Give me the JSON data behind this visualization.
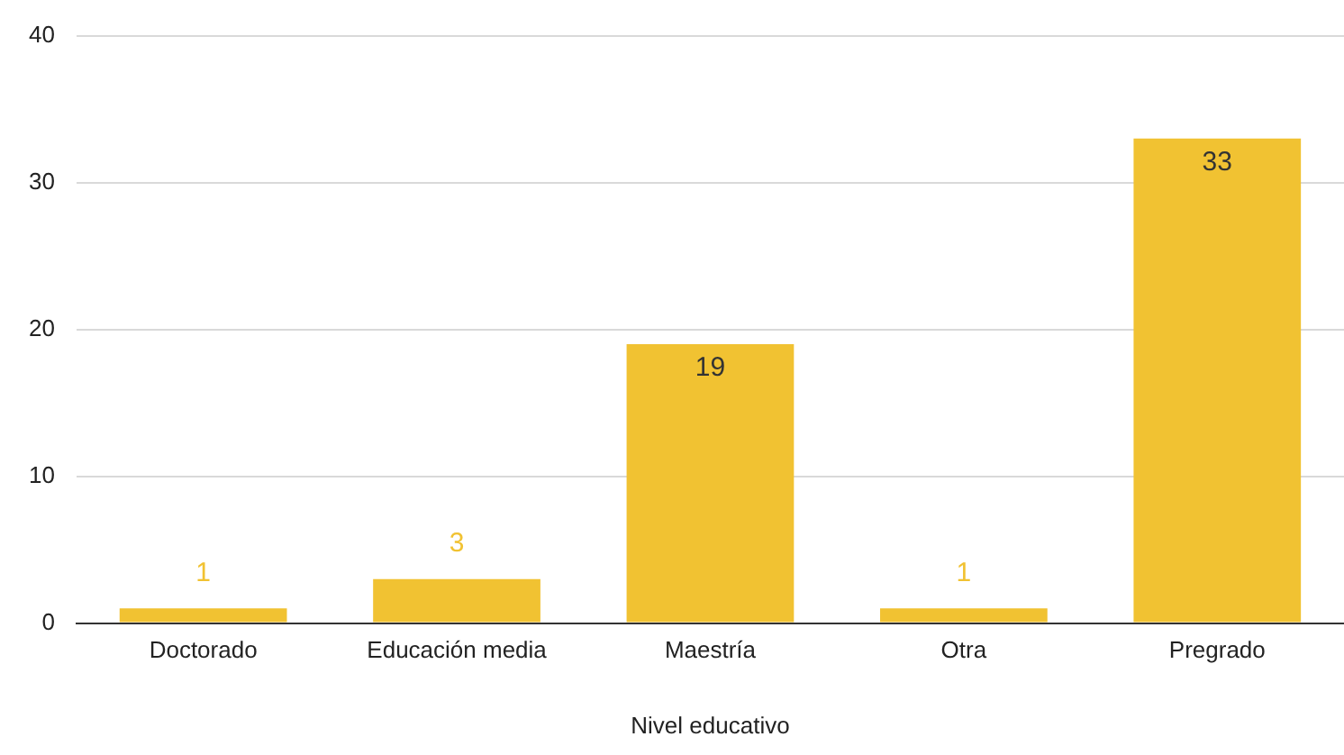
{
  "chart_data": {
    "type": "bar",
    "xlabel": "Nivel educativo",
    "categories": [
      "Doctorado",
      "Educación media",
      "Maestría",
      "Otra",
      "Pregrado"
    ],
    "values": [
      1,
      3,
      19,
      1,
      33
    ],
    "color": "#f1c232",
    "ylim": [
      0,
      40
    ],
    "yticks": [
      0,
      10,
      20,
      30,
      40
    ],
    "grid": "y",
    "data_labels": true,
    "legend": false
  }
}
